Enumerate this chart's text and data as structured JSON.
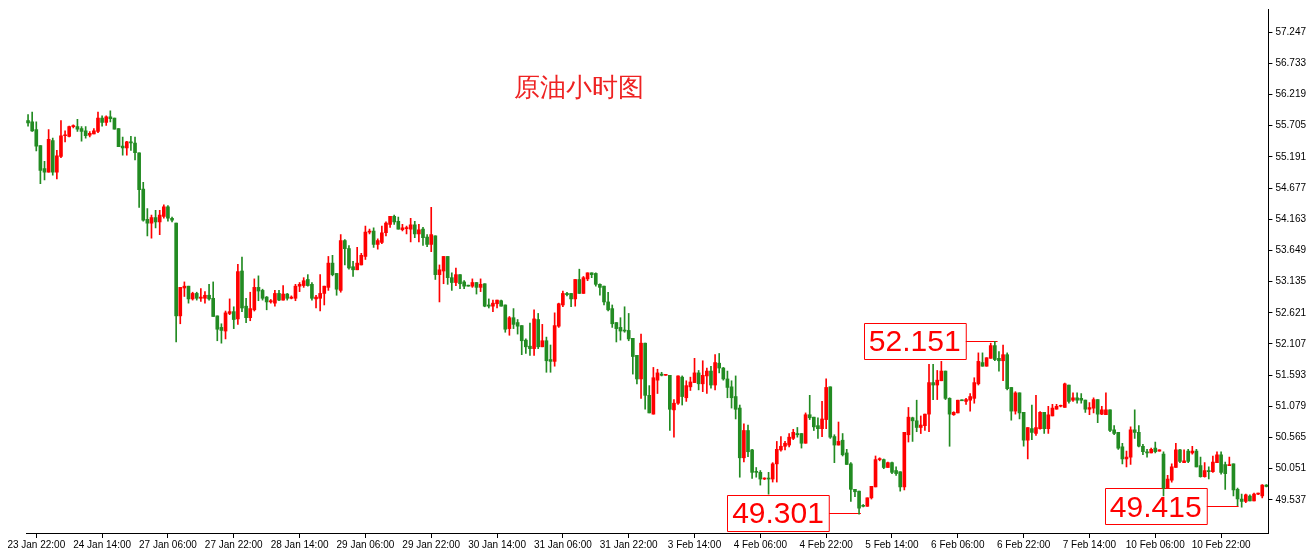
{
  "chart_data": {
    "type": "candlestick",
    "title": "原油小时图",
    "categories": [
      null,
      null,
      "23 Jan 22:00",
      null,
      null,
      null,
      null,
      null,
      null,
      null,
      null,
      null,
      null,
      null,
      null,
      null,
      null,
      null,
      "24 Jan 14:00",
      null,
      null,
      null,
      null,
      null,
      null,
      null,
      null,
      null,
      null,
      null,
      null,
      null,
      null,
      null,
      "27 Jan 06:00",
      null,
      null,
      null,
      null,
      null,
      null,
      null,
      null,
      null,
      null,
      null,
      null,
      null,
      null,
      null,
      "27 Jan 22:00",
      null,
      null,
      null,
      null,
      null,
      null,
      null,
      null,
      null,
      null,
      null,
      null,
      null,
      null,
      null,
      "28 Jan 14:00",
      null,
      null,
      null,
      null,
      null,
      null,
      null,
      null,
      null,
      null,
      null,
      null,
      null,
      null,
      null,
      "29 Jan 06:00",
      null,
      null,
      null,
      null,
      null,
      null,
      null,
      null,
      null,
      null,
      null,
      null,
      null,
      null,
      null,
      "29 Jan 22:00",
      null,
      null,
      null,
      null,
      null,
      null,
      null,
      null,
      null,
      null,
      null,
      null,
      null,
      null,
      null,
      "30 Jan 14:00",
      null,
      null,
      null,
      null,
      null,
      null,
      null,
      null,
      null,
      null,
      null,
      null,
      null,
      null,
      null,
      "31 Jan 06:00",
      null,
      null,
      null,
      null,
      null,
      null,
      null,
      null,
      null,
      null,
      null,
      null,
      null,
      null,
      null,
      "31 Jan 22:00",
      null,
      null,
      null,
      null,
      null,
      null,
      null,
      null,
      null,
      null,
      null,
      null,
      null,
      null,
      null,
      "3 Feb 14:00",
      null,
      null,
      null,
      null,
      null,
      null,
      null,
      null,
      null,
      null,
      null,
      null,
      null,
      null,
      null,
      "4 Feb 06:00",
      null,
      null,
      null,
      null,
      null,
      null,
      null,
      null,
      null,
      null,
      null,
      null,
      null,
      null,
      null,
      "4 Feb 22:00",
      null,
      null,
      null,
      null,
      null,
      null,
      null,
      null,
      null,
      null,
      null,
      null,
      null,
      null,
      null,
      "5 Feb 14:00",
      null,
      null,
      null,
      null,
      null,
      null,
      null,
      null,
      null,
      null,
      null,
      null,
      null,
      null,
      null,
      "6 Feb 06:00",
      null,
      null,
      null,
      null,
      null,
      null,
      null,
      null,
      null,
      null,
      null,
      null,
      null,
      null,
      null,
      "6 Feb 22:00",
      null,
      null,
      null,
      null,
      null,
      null,
      null,
      null,
      null,
      null,
      null,
      null,
      null,
      null,
      null,
      "7 Feb 14:00",
      null,
      null,
      null,
      null,
      null,
      null,
      null,
      null,
      null,
      null,
      null,
      null,
      null,
      null,
      null,
      "10 Feb 06:00",
      null,
      null,
      null,
      null,
      null,
      null,
      null,
      null,
      null,
      null,
      null,
      null,
      null,
      null,
      null,
      "10 Feb 22:00",
      null,
      null,
      null,
      null,
      null,
      null,
      null,
      null,
      null,
      null,
      null
    ],
    "ohlc": [
      [
        55.79,
        55.89,
        55.7,
        55.75
      ],
      [
        55.77,
        55.93,
        55.61,
        55.62
      ],
      [
        55.64,
        55.77,
        55.29,
        55.37
      ],
      [
        55.38,
        55.38,
        54.75,
        54.97
      ],
      [
        55.0,
        55.12,
        54.81,
        54.94
      ],
      [
        54.94,
        55.64,
        54.94,
        55.48
      ],
      [
        55.46,
        55.5,
        54.89,
        54.94
      ],
      [
        54.94,
        55.3,
        54.83,
        55.21
      ],
      [
        55.2,
        55.79,
        55.18,
        55.54
      ],
      [
        55.54,
        55.62,
        55.44,
        55.55
      ],
      [
        55.53,
        55.7,
        55.52,
        55.69
      ],
      [
        55.69,
        55.72,
        55.67,
        55.7
      ],
      [
        55.69,
        55.81,
        55.61,
        55.65
      ],
      [
        55.66,
        55.69,
        55.45,
        55.61
      ],
      [
        55.62,
        55.69,
        55.5,
        55.54
      ],
      [
        55.55,
        55.61,
        55.52,
        55.58
      ],
      [
        55.57,
        55.66,
        55.57,
        55.62
      ],
      [
        55.61,
        55.93,
        55.59,
        55.83
      ],
      [
        55.83,
        55.87,
        55.7,
        55.76
      ],
      [
        55.76,
        55.87,
        55.71,
        55.85
      ],
      [
        55.85,
        55.95,
        55.77,
        55.82
      ],
      [
        55.83,
        55.83,
        55.65,
        55.65
      ],
      [
        55.66,
        55.66,
        55.36,
        55.36
      ],
      [
        55.37,
        55.52,
        55.22,
        55.34
      ],
      [
        55.34,
        55.45,
        55.22,
        55.44
      ],
      [
        55.44,
        55.53,
        55.3,
        55.42
      ],
      [
        55.42,
        55.52,
        55.14,
        55.26
      ],
      [
        55.26,
        55.26,
        54.36,
        54.65
      ],
      [
        54.66,
        54.77,
        54.13,
        54.15
      ],
      [
        54.16,
        54.34,
        53.89,
        54.1
      ],
      [
        54.1,
        54.23,
        53.85,
        54.19
      ],
      [
        54.19,
        54.31,
        54.02,
        54.12
      ],
      [
        54.12,
        54.31,
        53.91,
        54.23
      ],
      [
        54.21,
        54.4,
        54.18,
        54.37
      ],
      [
        54.37,
        54.39,
        54.13,
        54.18
      ],
      [
        54.18,
        54.2,
        54.12,
        54.15
      ],
      [
        54.1,
        54.1,
        52.14,
        52.57
      ],
      [
        52.57,
        53.04,
        52.44,
        53.04
      ],
      [
        53.03,
        53.13,
        52.89,
        53.06
      ],
      [
        53.06,
        53.06,
        52.78,
        52.85
      ],
      [
        52.85,
        52.96,
        52.83,
        52.94
      ],
      [
        52.94,
        52.96,
        52.83,
        52.86
      ],
      [
        52.86,
        53.02,
        52.81,
        52.88
      ],
      [
        52.86,
        52.97,
        52.78,
        52.91
      ],
      [
        52.91,
        53.09,
        52.83,
        52.85
      ],
      [
        52.86,
        53.13,
        52.56,
        52.56
      ],
      [
        52.57,
        52.57,
        52.16,
        52.35
      ],
      [
        52.38,
        52.44,
        52.12,
        52.33
      ],
      [
        52.32,
        52.65,
        52.19,
        52.62
      ],
      [
        52.61,
        52.85,
        52.59,
        52.64
      ],
      [
        52.64,
        52.72,
        52.36,
        52.51
      ],
      [
        52.52,
        53.42,
        52.43,
        53.3
      ],
      [
        53.31,
        53.54,
        52.64,
        52.7
      ],
      [
        52.73,
        52.86,
        52.46,
        52.54
      ],
      [
        52.54,
        52.96,
        52.49,
        52.69
      ],
      [
        52.67,
        53.18,
        52.65,
        53.04
      ],
      [
        53.04,
        53.23,
        52.82,
        52.98
      ],
      [
        52.99,
        53.01,
        52.83,
        52.86
      ],
      [
        52.88,
        52.89,
        52.67,
        52.8
      ],
      [
        52.8,
        52.84,
        52.78,
        52.82
      ],
      [
        52.78,
        52.99,
        52.73,
        52.94
      ],
      [
        52.94,
        52.99,
        52.82,
        52.83
      ],
      [
        52.83,
        53.07,
        52.83,
        52.93
      ],
      [
        52.93,
        52.94,
        52.83,
        52.86
      ],
      [
        52.86,
        52.9,
        52.85,
        52.88
      ],
      [
        52.86,
        53.09,
        52.82,
        53.06
      ],
      [
        53.06,
        53.12,
        52.97,
        53.09
      ],
      [
        53.07,
        53.2,
        53.04,
        53.15
      ],
      [
        53.17,
        53.25,
        53.06,
        53.07
      ],
      [
        53.09,
        53.12,
        52.83,
        52.86
      ],
      [
        52.85,
        52.91,
        52.7,
        52.88
      ],
      [
        52.86,
        53.25,
        52.65,
        52.94
      ],
      [
        52.94,
        53.06,
        52.75,
        53.06
      ],
      [
        53.04,
        53.55,
        52.99,
        53.44
      ],
      [
        53.44,
        53.57,
        53.23,
        53.25
      ],
      [
        53.27,
        53.27,
        52.91,
        53.01
      ],
      [
        52.99,
        53.91,
        52.96,
        53.81
      ],
      [
        53.81,
        53.83,
        53.41,
        53.68
      ],
      [
        53.68,
        53.73,
        53.34,
        53.36
      ],
      [
        53.38,
        53.47,
        53.22,
        53.33
      ],
      [
        53.33,
        53.7,
        53.33,
        53.44
      ],
      [
        53.41,
        53.6,
        53.41,
        53.57
      ],
      [
        53.55,
        54.05,
        53.5,
        53.95
      ],
      [
        53.95,
        54.0,
        53.92,
        53.97
      ],
      [
        53.97,
        54.02,
        53.7,
        53.75
      ],
      [
        53.75,
        53.84,
        53.67,
        53.81
      ],
      [
        53.78,
        54.05,
        53.76,
        53.94
      ],
      [
        53.94,
        54.12,
        53.89,
        54.1
      ],
      [
        54.08,
        54.21,
        54.03,
        54.21
      ],
      [
        54.21,
        54.23,
        54.08,
        54.12
      ],
      [
        54.13,
        54.2,
        54.0,
        54.0
      ],
      [
        53.99,
        54.08,
        53.97,
        54.02
      ],
      [
        54.01,
        54.05,
        53.92,
        54.02
      ],
      [
        54.0,
        54.18,
        53.79,
        54.07
      ],
      [
        54.07,
        54.13,
        53.86,
        53.92
      ],
      [
        53.92,
        54.08,
        53.79,
        53.99
      ],
      [
        54.0,
        54.03,
        53.73,
        53.86
      ],
      [
        53.87,
        53.91,
        53.71,
        53.75
      ],
      [
        53.75,
        54.36,
        53.63,
        53.91
      ],
      [
        53.89,
        53.89,
        53.17,
        53.25
      ],
      [
        53.25,
        53.41,
        52.8,
        53.33
      ],
      [
        53.31,
        53.55,
        53.1,
        53.55
      ],
      [
        53.55,
        53.55,
        53.09,
        53.2
      ],
      [
        53.2,
        53.28,
        52.99,
        53.12
      ],
      [
        53.12,
        53.36,
        53.07,
        53.25
      ],
      [
        53.25,
        53.25,
        53.02,
        53.1
      ],
      [
        53.13,
        53.15,
        53.02,
        53.06
      ],
      [
        53.07,
        53.07,
        53.06,
        53.06
      ],
      [
        53.06,
        53.18,
        53.04,
        53.12
      ],
      [
        53.12,
        53.12,
        52.93,
        53.04
      ],
      [
        53.04,
        53.18,
        52.97,
        53.09
      ],
      [
        53.1,
        53.1,
        52.72,
        52.73
      ],
      [
        52.75,
        52.85,
        52.7,
        52.73
      ],
      [
        52.73,
        52.83,
        52.64,
        52.78
      ],
      [
        52.77,
        52.83,
        52.7,
        52.83
      ],
      [
        52.82,
        52.83,
        52.73,
        52.73
      ],
      [
        52.75,
        52.75,
        52.3,
        52.35
      ],
      [
        52.36,
        52.56,
        52.25,
        52.54
      ],
      [
        52.54,
        52.69,
        52.36,
        52.43
      ],
      [
        52.46,
        52.51,
        52.27,
        52.4
      ],
      [
        52.41,
        52.41,
        51.93,
        52.16
      ],
      [
        52.17,
        52.19,
        51.95,
        52.06
      ],
      [
        52.07,
        52.45,
        51.92,
        52.03
      ],
      [
        52.03,
        52.67,
        51.92,
        52.52
      ],
      [
        52.51,
        52.61,
        52.03,
        52.06
      ],
      [
        52.06,
        52.43,
        52.06,
        52.16
      ],
      [
        52.16,
        52.22,
        51.64,
        51.83
      ],
      [
        51.85,
        52.09,
        51.64,
        51.82
      ],
      [
        51.82,
        52.62,
        51.74,
        52.41
      ],
      [
        52.4,
        52.78,
        52.38,
        52.77
      ],
      [
        52.75,
        52.98,
        52.72,
        52.94
      ],
      [
        52.94,
        52.96,
        52.9,
        52.92
      ],
      [
        52.94,
        52.94,
        52.72,
        52.85
      ],
      [
        52.85,
        53.17,
        52.73,
        53.17
      ],
      [
        53.17,
        53.34,
        52.94,
        52.94
      ],
      [
        52.94,
        53.22,
        52.94,
        53.2
      ],
      [
        53.18,
        53.28,
        53.15,
        53.28
      ],
      [
        53.28,
        53.28,
        53.2,
        53.25
      ],
      [
        53.27,
        53.28,
        53.06,
        53.09
      ],
      [
        53.09,
        53.1,
        52.91,
        53.04
      ],
      [
        53.06,
        53.06,
        52.75,
        52.8
      ],
      [
        52.8,
        52.96,
        52.65,
        52.67
      ],
      [
        52.69,
        52.75,
        52.38,
        52.44
      ],
      [
        52.46,
        52.46,
        52.14,
        52.36
      ],
      [
        52.38,
        52.54,
        52.17,
        52.32
      ],
      [
        52.33,
        52.72,
        52.3,
        52.32
      ],
      [
        52.33,
        52.61,
        52.16,
        52.19
      ],
      [
        52.2,
        52.2,
        51.61,
        51.9
      ],
      [
        51.92,
        51.92,
        51.45,
        51.53
      ],
      [
        51.53,
        52.27,
        51.21,
        52.12
      ],
      [
        52.12,
        52.12,
        51.03,
        51.26
      ],
      [
        51.26,
        51.42,
        50.97,
        50.97
      ],
      [
        50.95,
        51.72,
        50.95,
        51.55
      ],
      [
        51.51,
        51.69,
        51.29,
        51.63
      ],
      [
        51.61,
        51.64,
        51.58,
        51.59
      ],
      [
        51.59,
        51.6,
        51.59,
        51.6
      ],
      [
        51.59,
        51.59,
        50.68,
        51.03
      ],
      [
        51.02,
        51.19,
        50.57,
        51.13
      ],
      [
        51.13,
        51.58,
        51.11,
        51.58
      ],
      [
        51.56,
        51.58,
        51.1,
        51.24
      ],
      [
        51.22,
        51.5,
        51.16,
        51.42
      ],
      [
        51.4,
        51.56,
        51.34,
        51.48
      ],
      [
        51.47,
        51.87,
        51.47,
        51.63
      ],
      [
        51.63,
        51.67,
        51.35,
        51.45
      ],
      [
        51.45,
        51.83,
        51.32,
        51.59
      ],
      [
        51.58,
        51.71,
        51.29,
        51.66
      ],
      [
        51.66,
        51.74,
        51.38,
        51.43
      ],
      [
        51.43,
        51.93,
        51.35,
        51.8
      ],
      [
        51.79,
        51.95,
        51.63,
        51.71
      ],
      [
        51.71,
        51.72,
        51.51,
        51.53
      ],
      [
        51.53,
        51.66,
        51.22,
        51.39
      ],
      [
        51.4,
        51.5,
        51.05,
        51.22
      ],
      [
        51.24,
        51.58,
        50.87,
        51.03
      ],
      [
        51.05,
        51.1,
        49.91,
        50.23
      ],
      [
        50.23,
        50.79,
        50.16,
        50.68
      ],
      [
        50.68,
        50.77,
        50.25,
        50.33
      ],
      [
        50.36,
        50.37,
        49.89,
        49.99
      ],
      [
        50.0,
        50.07,
        49.91,
        49.99
      ],
      [
        49.99,
        50.02,
        49.78,
        49.88
      ],
      [
        49.88,
        49.9,
        49.87,
        49.89
      ],
      [
        49.89,
        49.99,
        49.63,
        49.88
      ],
      [
        49.88,
        50.15,
        49.83,
        50.13
      ],
      [
        50.13,
        50.5,
        49.83,
        50.37
      ],
      [
        50.36,
        50.58,
        50.34,
        50.42
      ],
      [
        50.42,
        50.5,
        50.36,
        50.47
      ],
      [
        50.44,
        50.63,
        50.41,
        50.57
      ],
      [
        50.55,
        50.7,
        50.53,
        50.65
      ],
      [
        50.63,
        50.73,
        50.57,
        50.61
      ],
      [
        50.63,
        50.63,
        50.39,
        50.47
      ],
      [
        50.47,
        50.97,
        50.47,
        50.94
      ],
      [
        50.94,
        51.26,
        50.86,
        50.89
      ],
      [
        50.9,
        50.9,
        50.68,
        50.74
      ],
      [
        50.76,
        50.89,
        50.55,
        50.71
      ],
      [
        50.71,
        51.16,
        50.58,
        50.87
      ],
      [
        50.86,
        51.53,
        50.71,
        51.39
      ],
      [
        51.4,
        51.4,
        50.55,
        50.57
      ],
      [
        50.58,
        50.61,
        50.15,
        50.44
      ],
      [
        50.44,
        50.82,
        50.44,
        50.5
      ],
      [
        50.52,
        50.63,
        50.26,
        50.28
      ],
      [
        50.31,
        50.37,
        50.12,
        50.12
      ],
      [
        50.13,
        50.15,
        49.51,
        49.71
      ],
      [
        49.71,
        49.71,
        49.59,
        49.67
      ],
      [
        49.68,
        49.68,
        49.301,
        49.4
      ],
      [
        49.44,
        49.46,
        49.42,
        49.43
      ],
      [
        49.43,
        49.57,
        49.43,
        49.57
      ],
      [
        49.57,
        49.76,
        49.55,
        49.76
      ],
      [
        49.75,
        50.26,
        49.75,
        50.2
      ],
      [
        50.2,
        50.23,
        50.18,
        50.21
      ],
      [
        50.2,
        50.21,
        50.05,
        50.07
      ],
      [
        50.07,
        50.16,
        50.07,
        50.15
      ],
      [
        50.15,
        50.16,
        49.97,
        49.99
      ],
      [
        50.02,
        50.08,
        49.94,
        49.97
      ],
      [
        50.0,
        50.0,
        49.68,
        49.75
      ],
      [
        49.75,
        50.65,
        49.7,
        50.65
      ],
      [
        50.61,
        51.06,
        50.49,
        50.9
      ],
      [
        50.89,
        50.9,
        50.5,
        50.84
      ],
      [
        50.84,
        51.18,
        50.66,
        50.73
      ],
      [
        50.73,
        50.92,
        50.63,
        50.77
      ],
      [
        50.76,
        50.95,
        50.68,
        50.95
      ],
      [
        50.95,
        51.77,
        50.66,
        51.47
      ],
      [
        51.47,
        51.77,
        51.19,
        51.43
      ],
      [
        51.43,
        51.67,
        51.19,
        51.51
      ],
      [
        51.5,
        51.82,
        51.5,
        51.66
      ],
      [
        51.66,
        51.66,
        51.19,
        51.21
      ],
      [
        51.21,
        51.22,
        50.42,
        50.95
      ],
      [
        50.94,
        50.99,
        50.93,
        50.98
      ],
      [
        50.97,
        51.18,
        50.97,
        51.18
      ],
      [
        51.18,
        51.18,
        51.17,
        51.17
      ],
      [
        51.16,
        51.21,
        51.11,
        51.19
      ],
      [
        51.18,
        51.29,
        51.0,
        51.24
      ],
      [
        51.21,
        51.55,
        51.13,
        51.47
      ],
      [
        51.45,
        51.96,
        51.43,
        51.82
      ],
      [
        51.8,
        51.96,
        51.74,
        51.74
      ],
      [
        51.74,
        51.88,
        51.74,
        51.88
      ],
      [
        51.87,
        52.12,
        51.87,
        52.08
      ],
      [
        52.08,
        52.151,
        51.83,
        51.85
      ],
      [
        51.87,
        51.98,
        51.66,
        51.83
      ],
      [
        51.83,
        52.09,
        51.5,
        51.93
      ],
      [
        51.93,
        51.96,
        51.35,
        51.37
      ],
      [
        51.39,
        51.39,
        50.85,
        51.0
      ],
      [
        51.0,
        51.32,
        50.95,
        51.3
      ],
      [
        51.3,
        51.3,
        50.87,
        50.97
      ],
      [
        50.98,
        50.98,
        50.42,
        50.52
      ],
      [
        50.52,
        50.73,
        50.21,
        50.73
      ],
      [
        50.71,
        51.1,
        50.53,
        50.65
      ],
      [
        50.63,
        51.26,
        50.6,
        50.73
      ],
      [
        50.71,
        50.99,
        50.7,
        50.98
      ],
      [
        50.98,
        50.98,
        50.63,
        50.71
      ],
      [
        50.71,
        51.08,
        50.63,
        50.94
      ],
      [
        50.92,
        51.11,
        50.92,
        51.05
      ],
      [
        51.03,
        51.11,
        51.03,
        51.08
      ],
      [
        51.08,
        51.1,
        51.07,
        51.09
      ],
      [
        51.06,
        51.46,
        51.06,
        51.45
      ],
      [
        51.43,
        51.43,
        51.13,
        51.16
      ],
      [
        51.18,
        51.3,
        51.16,
        51.22
      ],
      [
        51.22,
        51.3,
        51.13,
        51.18
      ],
      [
        51.21,
        51.29,
        51.13,
        51.18
      ],
      [
        51.18,
        51.18,
        50.98,
        51.03
      ],
      [
        51.03,
        51.14,
        50.94,
        51.06
      ],
      [
        51.05,
        51.22,
        50.97,
        51.19
      ],
      [
        51.19,
        51.19,
        50.81,
        50.95
      ],
      [
        50.95,
        51.08,
        50.94,
        51.02
      ],
      [
        50.94,
        51.3,
        50.94,
        51.02
      ],
      [
        51.02,
        51.02,
        50.66,
        50.68
      ],
      [
        50.69,
        50.76,
        50.61,
        50.63
      ],
      [
        50.65,
        50.65,
        50.37,
        50.39
      ],
      [
        50.41,
        50.47,
        50.13,
        50.21
      ],
      [
        50.21,
        50.34,
        50.08,
        50.24
      ],
      [
        50.24,
        50.74,
        50.12,
        50.69
      ],
      [
        50.69,
        51.02,
        50.55,
        50.65
      ],
      [
        50.65,
        50.76,
        50.41,
        50.42
      ],
      [
        50.42,
        50.45,
        50.28,
        50.33
      ],
      [
        50.33,
        50.37,
        50.24,
        50.31
      ],
      [
        50.31,
        50.39,
        50.31,
        50.37
      ],
      [
        50.39,
        50.49,
        50.31,
        50.33
      ],
      [
        50.34,
        50.36,
        50.34,
        50.36
      ],
      [
        50.29,
        50.33,
        49.6,
        49.73
      ],
      [
        49.73,
        49.94,
        49.73,
        49.88
      ],
      [
        49.86,
        50.13,
        49.83,
        50.08
      ],
      [
        50.07,
        50.47,
        50.07,
        50.36
      ],
      [
        50.36,
        50.37,
        50.15,
        50.17
      ],
      [
        50.15,
        50.36,
        50.15,
        50.18
      ],
      [
        50.34,
        50.37,
        50.15,
        50.17
      ],
      [
        50.31,
        50.42,
        50.29,
        50.34
      ],
      [
        50.34,
        50.37,
        50.08,
        50.08
      ],
      [
        50.1,
        50.24,
        49.91,
        49.92
      ],
      [
        49.92,
        50.15,
        49.91,
        50.02
      ],
      [
        50.02,
        50.08,
        49.88,
        50.0
      ],
      [
        50.0,
        50.26,
        49.99,
        50.16
      ],
      [
        50.15,
        50.33,
        50.15,
        50.28
      ],
      [
        50.28,
        50.33,
        49.96,
        49.99
      ],
      [
        50.12,
        50.16,
        49.71,
        49.97
      ],
      [
        50.1,
        50.24,
        50.1,
        50.12
      ],
      [
        50.13,
        50.13,
        49.6,
        49.7
      ],
      [
        49.71,
        49.73,
        49.44,
        49.55
      ],
      [
        49.55,
        49.63,
        49.415,
        49.51
      ],
      [
        49.51,
        49.63,
        49.49,
        49.62
      ],
      [
        49.6,
        49.62,
        49.52,
        49.52
      ],
      [
        49.52,
        49.65,
        49.52,
        49.63
      ],
      [
        49.63,
        49.65,
        49.62,
        49.64
      ],
      [
        49.6,
        49.79,
        49.57,
        49.78
      ],
      [
        49.78,
        49.79,
        49.75,
        49.76
      ]
    ],
    "colors": [
      "#228b22",
      "#228b22",
      "#228b22",
      "#228b22",
      "#228b22",
      "#ff0000",
      "#228b22",
      "#ff0000",
      "#ff0000",
      "#ff0000",
      "#ff0000",
      "#ff0000",
      "#228b22",
      "#228b22",
      "#228b22",
      "#ff0000",
      "#ff0000",
      "#ff0000",
      "#228b22",
      "#ff0000",
      "#228b22",
      "#228b22",
      "#228b22",
      "#228b22",
      "#ff0000",
      "#228b22",
      "#228b22",
      "#228b22",
      "#228b22",
      "#228b22",
      "#ff0000",
      "#228b22",
      "#ff0000",
      "#ff0000",
      "#228b22",
      "#228b22",
      "#228b22",
      "#ff0000",
      "#ff0000",
      "#228b22",
      "#ff0000",
      "#228b22",
      "#ff0000",
      "#ff0000",
      "#228b22",
      "#228b22",
      "#228b22",
      "#228b22",
      "#ff0000",
      "#ff0000",
      "#228b22",
      "#ff0000",
      "#228b22",
      "#228b22",
      "#ff0000",
      "#ff0000",
      "#228b22",
      "#228b22",
      "#228b22",
      "#ff0000",
      "#ff0000",
      "#228b22",
      "#ff0000",
      "#228b22",
      "#ff0000",
      "#ff0000",
      "#ff0000",
      "#ff0000",
      "#228b22",
      "#228b22",
      "#ff0000",
      "#ff0000",
      "#ff0000",
      "#ff0000",
      "#228b22",
      "#228b22",
      "#ff0000",
      "#228b22",
      "#228b22",
      "#228b22",
      "#ff0000",
      "#ff0000",
      "#ff0000",
      "#ff0000",
      "#228b22",
      "#ff0000",
      "#ff0000",
      "#ff0000",
      "#ff0000",
      "#228b22",
      "#228b22",
      "#ff0000",
      "#ff0000",
      "#ff0000",
      "#228b22",
      "#ff0000",
      "#228b22",
      "#228b22",
      "#ff0000",
      "#228b22",
      "#ff0000",
      "#ff0000",
      "#228b22",
      "#228b22",
      "#ff0000",
      "#228b22",
      "#228b22",
      "#228b22",
      "#ff0000",
      "#228b22",
      "#ff0000",
      "#228b22",
      "#228b22",
      "#ff0000",
      "#ff0000",
      "#228b22",
      "#228b22",
      "#ff0000",
      "#228b22",
      "#228b22",
      "#228b22",
      "#228b22",
      "#228b22",
      "#ff0000",
      "#228b22",
      "#ff0000",
      "#228b22",
      "#228b22",
      "#ff0000",
      "#ff0000",
      "#ff0000",
      "#228b22",
      "#228b22",
      "#ff0000",
      "#228b22",
      "#ff0000",
      "#ff0000",
      "#228b22",
      "#228b22",
      "#228b22",
      "#228b22",
      "#228b22",
      "#228b22",
      "#228b22",
      "#228b22",
      "#228b22",
      "#228b22",
      "#228b22",
      "#228b22",
      "#ff0000",
      "#228b22",
      "#228b22",
      "#ff0000",
      "#ff0000",
      "#228b22",
      "#ff0000",
      "#228b22",
      "#ff0000",
      "#ff0000",
      "#228b22",
      "#ff0000",
      "#ff0000",
      "#ff0000",
      "#228b22",
      "#ff0000",
      "#ff0000",
      "#228b22",
      "#ff0000",
      "#228b22",
      "#228b22",
      "#228b22",
      "#228b22",
      "#228b22",
      "#228b22",
      "#ff0000",
      "#228b22",
      "#228b22",
      "#228b22",
      "#228b22",
      "#ff0000",
      "#228b22",
      "#ff0000",
      "#ff0000",
      "#ff0000",
      "#ff0000",
      "#ff0000",
      "#ff0000",
      "#228b22",
      "#228b22",
      "#ff0000",
      "#228b22",
      "#228b22",
      "#228b22",
      "#ff0000",
      "#ff0000",
      "#228b22",
      "#228b22",
      "#ff0000",
      "#228b22",
      "#228b22",
      "#228b22",
      "#228b22",
      "#228b22",
      "#228b22",
      "#ff0000",
      "#ff0000",
      "#ff0000",
      "#ff0000",
      "#228b22",
      "#ff0000",
      "#228b22",
      "#228b22",
      "#228b22",
      "#ff0000",
      "#ff0000",
      "#228b22",
      "#228b22",
      "#ff0000",
      "#ff0000",
      "#ff0000",
      "#228b22",
      "#ff0000",
      "#ff0000",
      "#228b22",
      "#228b22",
      "#ff0000",
      "#ff0000",
      "#228b22",
      "#ff0000",
      "#ff0000",
      "#ff0000",
      "#ff0000",
      "#228b22",
      "#ff0000",
      "#ff0000",
      "#228b22",
      "#228b22",
      "#ff0000",
      "#228b22",
      "#228b22",
      "#ff0000",
      "#228b22",
      "#228b22",
      "#ff0000",
      "#228b22",
      "#ff0000",
      "#ff0000",
      "#228b22",
      "#ff0000",
      "#ff0000",
      "#ff0000",
      "#ff0000",
      "#ff0000",
      "#228b22",
      "#ff0000",
      "#228b22",
      "#228b22",
      "#228b22",
      "#ff0000",
      "#ff0000",
      "#228b22",
      "#ff0000",
      "#ff0000",
      "#228b22",
      "#228b22",
      "#228b22",
      "#228b22",
      "#ff0000",
      "#ff0000",
      "#228b22",
      "#228b22",
      "#228b22",
      "#228b22",
      "#ff0000",
      "#228b22",
      "#ff0000",
      "#228b22",
      "#ff0000",
      "#ff0000",
      "#ff0000",
      "#228b22",
      "#ff0000",
      "#228b22",
      "#ff0000",
      "#228b22",
      "#228b22",
      "#ff0000",
      "#228b22",
      "#ff0000",
      "#ff0000",
      "#228b22",
      "#228b22",
      "#ff0000",
      "#228b22",
      "#228b22",
      "#228b22",
      "#ff0000",
      "#228b22",
      "#ff0000",
      "#ff0000",
      "#ff0000",
      "#228b22"
    ],
    "ylim": [
      48.99,
      57.63
    ],
    "yticks": [
      49.537,
      50.051,
      50.565,
      51.079,
      51.593,
      52.107,
      52.621,
      53.135,
      53.649,
      54.163,
      54.677,
      55.191,
      55.705,
      56.219,
      56.733,
      57.247
    ],
    "annotations": [
      "52.151",
      "49.301",
      "49.415"
    ],
    "grid": false,
    "legend": false
  }
}
